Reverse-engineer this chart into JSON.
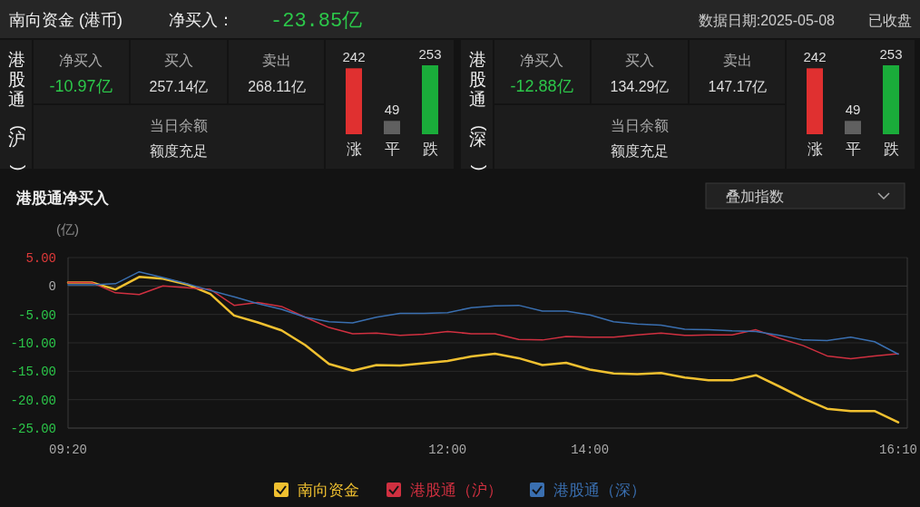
{
  "chart_data": [
    {
      "type": "other",
      "title": "南向资金 (港币)",
      "annotations": [
        "净买入：",
        "-23.85亿",
        "数据日期:2025-05-08",
        "已收盘"
      ]
    },
    {
      "type": "other",
      "title": "港股通(沪)",
      "annotations": [
        "净买入",
        "-10.97亿",
        "买入",
        "257.14亿",
        "卖出",
        "268.11亿",
        "当日余额",
        "额度充足"
      ]
    },
    {
      "type": "bar",
      "categories": [
        "涨",
        "平",
        "跌"
      ],
      "values": [
        242,
        49,
        253
      ],
      "colors": [
        "#e03030",
        "#606060",
        "#1aac3a"
      ],
      "data_labels": true
    },
    {
      "type": "other",
      "title": "港股通(深)",
      "annotations": [
        "净买入",
        "-12.88亿",
        "买入",
        "134.29亿",
        "卖出",
        "147.17亿",
        "当日余额",
        "额度充足"
      ]
    },
    {
      "type": "bar",
      "categories": [
        "涨",
        "平",
        "跌"
      ],
      "values": [
        242,
        49,
        253
      ],
      "colors": [
        "#e03030",
        "#606060",
        "#1aac3a"
      ],
      "data_labels": true
    },
    {
      "type": "line",
      "title": "港股通净买入",
      "ylabel": "(亿)",
      "annotations": [
        "叠加指数"
      ],
      "ylim": [
        -25,
        5
      ],
      "categories": [
        "09:20",
        null,
        null,
        null,
        null,
        null,
        null,
        null,
        null,
        null,
        null,
        null,
        null,
        null,
        null,
        null,
        "12:00",
        null,
        null,
        null,
        null,
        null,
        "14:00",
        null,
        null,
        null,
        null,
        null,
        null,
        null,
        null,
        null,
        null,
        null,
        null,
        "16:10"
      ],
      "yticks": [
        {
          "value": 5,
          "label": "5.00"
        },
        0,
        {
          "value": -5,
          "label": "-5.00"
        },
        {
          "value": -10,
          "label": "-10.00"
        },
        {
          "value": -15,
          "label": "-15.00"
        },
        {
          "value": -20,
          "label": "-20.00"
        },
        {
          "value": -25,
          "label": "-25.00"
        }
      ],
      "grid": "y",
      "legend": "bottom",
      "series": [
        {
          "name": "南向资金",
          "color": "#f0c030",
          "values": [
            0.6,
            0.6,
            -0.6,
            1.6,
            1.3,
            0.3,
            -1.4,
            -5.2,
            -6.4,
            -7.8,
            -10.4,
            -13.7,
            -14.9,
            -13.9,
            -14.0,
            -13.6,
            -13.2,
            -12.4,
            -11.9,
            -12.7,
            -13.9,
            -13.5,
            -14.7,
            -15.4,
            -15.5,
            -15.3,
            -16.1,
            -16.6,
            -16.6,
            -15.7,
            -17.7,
            -19.8,
            -21.6,
            -22.0,
            -22.0,
            -24.0
          ]
        },
        {
          "name": "港股通（沪）",
          "color": "#d03040",
          "values": [
            0.6,
            0.6,
            -1.2,
            -1.5,
            0.0,
            -0.3,
            -0.6,
            -3.4,
            -2.9,
            -3.6,
            -5.5,
            -7.3,
            -8.4,
            -8.3,
            -8.7,
            -8.5,
            -8.0,
            -8.4,
            -8.4,
            -9.4,
            -9.5,
            -8.9,
            -9.0,
            -9.0,
            -8.6,
            -8.3,
            -8.7,
            -8.6,
            -8.6,
            -7.7,
            -9.2,
            -10.5,
            -12.3,
            -12.8,
            -12.3,
            -11.9
          ]
        },
        {
          "name": "港股通（深）",
          "color": "#3a6fb0",
          "values": [
            0.2,
            0.2,
            0.4,
            2.5,
            1.5,
            0.4,
            -0.8,
            -1.9,
            -3.1,
            -4.1,
            -5.5,
            -6.3,
            -6.5,
            -5.5,
            -4.8,
            -4.8,
            -4.7,
            -3.8,
            -3.5,
            -3.4,
            -4.4,
            -4.4,
            -5.1,
            -6.3,
            -6.7,
            -6.9,
            -7.6,
            -7.7,
            -7.9,
            -8.0,
            -8.7,
            -9.5,
            -9.6,
            -9.0,
            -9.8,
            -12.0
          ]
        }
      ]
    }
  ]
}
